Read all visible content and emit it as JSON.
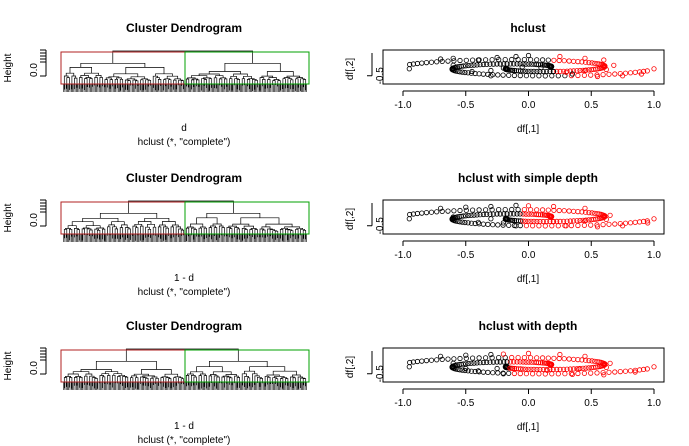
{
  "colors": {
    "background": "#ffffff",
    "ink": "#000000",
    "cluster_1": "#000000",
    "cluster_2": "#ff0000",
    "rect_1": "#b22222",
    "rect_2": "#00a000"
  },
  "chart_data": [
    {
      "type": "dendrogram",
      "title": "Cluster Dendrogram",
      "ylabel": "Height",
      "xlabel": "d",
      "sub": "hclust (*, \"complete\")",
      "y_tick_labels": [
        "0.0"
      ],
      "k_clusters": 2,
      "cluster_rect_colors": [
        "#b22222",
        "#00a000"
      ]
    },
    {
      "type": "scatter",
      "title": "hclust",
      "xlabel": "df[,1]",
      "ylabel": "df[,2]",
      "xlim": [
        -1.0,
        1.0
      ],
      "ylim": [
        -0.65,
        0.15
      ],
      "x_ticks": [
        -1.0,
        -0.5,
        0.0,
        0.5,
        1.0
      ],
      "x_tick_labels": [
        "-1.0",
        "-0.5",
        "0.0",
        "0.5",
        "1.0"
      ],
      "y_ticks": [
        -0.5
      ],
      "y_tick_labels": [
        "-0.5"
      ],
      "series": [
        {
          "color": "#000000",
          "x": [
            -0.95,
            -0.7,
            -0.6,
            -0.4,
            -0.25,
            -0.1,
            0.0,
            0.2,
            0.35,
            -0.3,
            -0.2,
            -0.05,
            0.1,
            -0.6,
            -0.45,
            -0.3
          ],
          "y": [
            -0.3,
            -0.02,
            0.0,
            -0.05,
            0.02,
            0.05,
            0.08,
            -0.38,
            -0.45,
            -0.35,
            -0.28,
            -0.25,
            -0.27,
            -0.2,
            -0.38,
            -0.5
          ]
        },
        {
          "color": "#ff0000",
          "x": [
            0.25,
            0.45,
            0.6,
            0.68,
            0.62,
            0.45,
            0.3,
            0.55,
            0.75,
            0.9,
            1.0
          ],
          "y": [
            0.05,
            0.0,
            -0.05,
            -0.2,
            -0.32,
            -0.35,
            -0.4,
            -0.52,
            -0.5,
            -0.45,
            -0.3
          ]
        }
      ]
    },
    {
      "type": "dendrogram",
      "title": "Cluster Dendrogram",
      "ylabel": "Height",
      "xlabel": "1 - d",
      "sub": "hclust (*, \"complete\")",
      "y_tick_labels": [
        "0.0"
      ],
      "k_clusters": 2,
      "cluster_rect_colors": [
        "#b22222",
        "#00a000"
      ]
    },
    {
      "type": "scatter",
      "title": "hclust with simple depth",
      "xlabel": "df[,1]",
      "ylabel": "df[,2]",
      "xlim": [
        -1.0,
        1.0
      ],
      "ylim": [
        -0.65,
        0.15
      ],
      "x_ticks": [
        -1.0,
        -0.5,
        0.0,
        0.5,
        1.0
      ],
      "x_tick_labels": [
        "-1.0",
        "-0.5",
        "0.0",
        "0.5",
        "1.0"
      ],
      "y_ticks": [
        -0.5
      ],
      "y_tick_labels": [
        "-0.5"
      ],
      "series": [
        {
          "color": "#000000",
          "x": [
            -0.95,
            -0.7,
            -0.5,
            -0.3,
            -0.1,
            -0.4,
            -0.6,
            -0.3,
            -0.2,
            -0.1
          ],
          "y": [
            -0.3,
            0.0,
            0.03,
            0.05,
            0.08,
            -0.4,
            -0.25,
            -0.3,
            -0.42,
            -0.5
          ]
        },
        {
          "color": "#ff0000",
          "x": [
            0.0,
            0.2,
            0.45,
            0.65,
            0.62,
            0.45,
            0.2,
            0.3,
            0.55,
            0.75,
            0.95,
            1.0
          ],
          "y": [
            0.07,
            0.05,
            0.0,
            -0.2,
            -0.32,
            -0.36,
            -0.38,
            -0.5,
            -0.53,
            -0.5,
            -0.42,
            -0.3
          ]
        }
      ]
    },
    {
      "type": "dendrogram",
      "title": "Cluster Dendrogram",
      "ylabel": "Height",
      "xlabel": "1 - d",
      "sub": "hclust (*, \"complete\")",
      "y_tick_labels": [
        "0.0"
      ],
      "k_clusters": 2,
      "cluster_rect_colors": [
        "#b22222",
        "#00a000"
      ]
    },
    {
      "type": "scatter",
      "title": "hclust with depth",
      "xlabel": "df[,1]",
      "ylabel": "df[,2]",
      "xlim": [
        -1.0,
        1.0
      ],
      "ylim": [
        -0.65,
        0.15
      ],
      "x_ticks": [
        -1.0,
        -0.5,
        0.0,
        0.5,
        1.0
      ],
      "x_tick_labels": [
        "-1.0",
        "-0.5",
        "0.0",
        "0.5",
        "1.0"
      ],
      "y_ticks": [
        -0.5
      ],
      "y_tick_labels": [
        "-0.5"
      ],
      "series": [
        {
          "color": "#000000",
          "x": [
            -0.95,
            -0.7,
            -0.5,
            -0.3,
            -0.5,
            -0.6,
            -0.4,
            -0.2,
            -0.25
          ],
          "y": [
            -0.3,
            0.0,
            0.03,
            0.05,
            -0.35,
            -0.2,
            -0.42,
            -0.5,
            -0.35
          ]
        },
        {
          "color": "#ff0000",
          "x": [
            -0.2,
            0.0,
            0.25,
            0.45,
            0.65,
            0.62,
            0.4,
            0.15,
            0.35,
            0.6,
            0.85,
            1.0
          ],
          "y": [
            0.06,
            0.08,
            0.05,
            0.0,
            -0.2,
            -0.32,
            -0.36,
            -0.4,
            -0.52,
            -0.53,
            -0.45,
            -0.3
          ]
        }
      ]
    }
  ]
}
